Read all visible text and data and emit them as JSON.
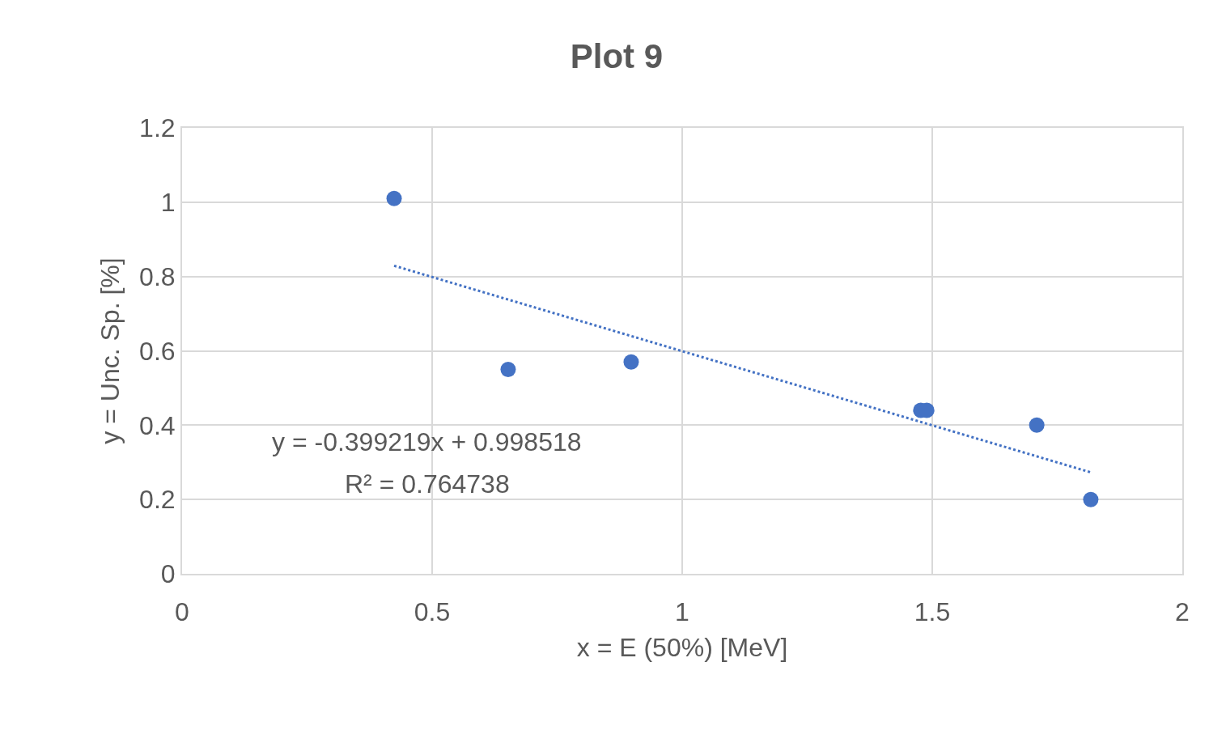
{
  "chart_data": {
    "type": "scatter",
    "title": "Plot 9",
    "xlabel": "x = E (50%) [MeV]",
    "ylabel": "y = Unc. Sp. [%]",
    "series": [
      {
        "color": "#4472c4",
        "marker": "circle",
        "x": [
          0.424,
          0.652,
          0.898,
          1.477,
          1.489,
          1.709,
          1.817
        ],
        "values": [
          1.01,
          0.55,
          0.57,
          0.44,
          0.44,
          0.4,
          0.2
        ]
      },
      {
        "type": "line",
        "color": "#4472c4",
        "line_style": "dotted",
        "marker": "none",
        "x": [
          0.424,
          1.817
        ],
        "values": [
          0.829,
          0.273
        ]
      }
    ],
    "annotations": [
      "y = -0.399219x + 0.998518",
      "R² = 0.764738"
    ],
    "xlim": [
      0,
      2
    ],
    "xticks": [
      0,
      0.5,
      1,
      1.5,
      2
    ],
    "ylim": [
      0,
      1.2
    ],
    "yticks": [
      0,
      0.2,
      0.4,
      0.6,
      0.8,
      1,
      1.2
    ],
    "grid": true
  }
}
